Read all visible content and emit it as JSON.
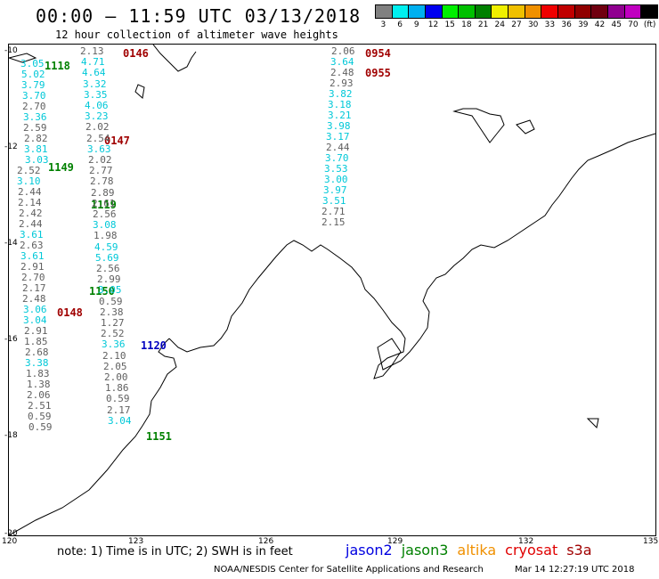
{
  "header": {
    "title": "00:00 – 11:59 UTC 03/13/2018",
    "subtitle": "12 hour collection of altimeter wave heights"
  },
  "legend": {
    "colors": [
      "#808080",
      "#00f0f0",
      "#00b0f0",
      "#0000f0",
      "#00f000",
      "#00c000",
      "#008000",
      "#f0f000",
      "#f0c000",
      "#f09000",
      "#f00000",
      "#c00000",
      "#900000",
      "#700010",
      "#900090",
      "#c000c0",
      "#000000"
    ],
    "labels": [
      "3",
      "6",
      "9",
      "12",
      "15",
      "18",
      "21",
      "24",
      "27",
      "30",
      "33",
      "36",
      "39",
      "42",
      "45",
      "70",
      "(ft)"
    ]
  },
  "axes": {
    "y_labels": [
      "-10",
      "-12",
      "-14",
      "-16",
      "-18",
      "-20"
    ],
    "x_labels": [
      "120",
      "123",
      "126",
      "129",
      "132",
      "135"
    ]
  },
  "time_labels": [
    {
      "text": "0146",
      "color": "#a00000"
    },
    {
      "text": "1118",
      "color": "#008000"
    },
    {
      "text": "0147",
      "color": "#a00000"
    },
    {
      "text": "1149",
      "color": "#008000"
    },
    {
      "text": "1119",
      "color": "#008000"
    },
    {
      "text": "1150",
      "color": "#008000"
    },
    {
      "text": "0148",
      "color": "#a00000"
    },
    {
      "text": "1120",
      "color": "#0000c0"
    },
    {
      "text": "1151",
      "color": "#008000"
    },
    {
      "text": "0954",
      "color": "#a00000"
    },
    {
      "text": "0955",
      "color": "#a00000"
    }
  ],
  "tracks": {
    "right": [
      "2.06",
      "3.64",
      "2.48",
      "2.93",
      "3.82",
      "3.18",
      "3.21",
      "3.98",
      "3.17",
      "2.44",
      "3.70",
      "3.53",
      "3.00",
      "3.97",
      "3.51",
      "2.71",
      "2.15"
    ],
    "left": [
      "3.05",
      "5.02",
      "3.79",
      "3.70",
      "2.70",
      "3.36",
      "2.59",
      "2.82",
      "3.81",
      "3.03",
      "2.52",
      "3.10",
      "2.44",
      "2.14",
      "2.42",
      "2.44",
      "3.61",
      "2.63",
      "3.61",
      "2.91",
      "2.70",
      "2.17",
      "2.48",
      "3.06",
      "3.04",
      "2.91",
      "1.85",
      "2.68",
      "3.38",
      "1.83",
      "1.38",
      "2.06",
      "2.51",
      "0.59",
      "0.59"
    ],
    "middle": [
      "2.13",
      "4.71",
      "4.64",
      "3.32",
      "3.35",
      "4.06",
      "3.23",
      "2.02",
      "2.54",
      "3.63",
      "2.02",
      "2.77",
      "2.78",
      "2.89",
      "2.61",
      "2.56",
      "3.08",
      "1.98",
      "4.59",
      "5.69",
      "2.56",
      "2.99",
      "3.05",
      "0.59",
      "2.38",
      "1.27",
      "2.52",
      "3.36",
      "2.10",
      "2.05",
      "2.00",
      "1.86",
      "0.59",
      "2.17",
      "3.04"
    ]
  },
  "footer": {
    "note": "note: 1) Time is in UTC; 2) SWH is in feet",
    "satellites": [
      {
        "name": "jason2",
        "color": "#0000e0"
      },
      {
        "name": "jason3",
        "color": "#008000"
      },
      {
        "name": "altika",
        "color": "#f09000"
      },
      {
        "name": "cryosat",
        "color": "#e00000"
      },
      {
        "name": "s3a",
        "color": "#a00000"
      }
    ],
    "credit": "NOAA/NESDIS Center for Satellite Applications and Research",
    "timestamp": "Mar 14 12:27:19 UTC 2018"
  }
}
